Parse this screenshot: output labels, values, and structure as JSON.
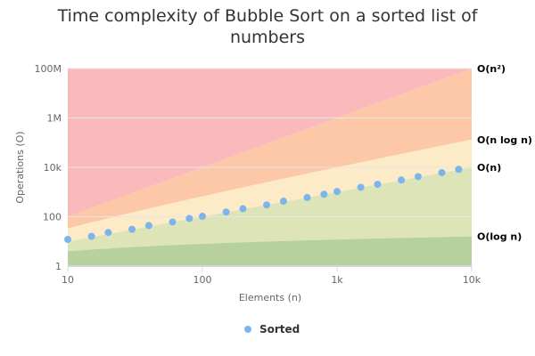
{
  "chart_data": {
    "type": "scatter",
    "title": "Time complexity of Bubble Sort on a sorted list of numbers",
    "xlabel": "Elements (n)",
    "ylabel": "Operations (O)",
    "x_scale": "log",
    "y_scale": "log",
    "xlim": [
      10,
      10000
    ],
    "ylim": [
      1,
      100000000
    ],
    "x_ticks": [
      {
        "value": 10,
        "label": "10"
      },
      {
        "value": 100,
        "label": "100"
      },
      {
        "value": 1000,
        "label": "1k"
      },
      {
        "value": 10000,
        "label": "10k"
      }
    ],
    "y_ticks": [
      {
        "value": 1,
        "label": "1"
      },
      {
        "value": 100,
        "label": "100"
      },
      {
        "value": 10000,
        "label": "10k"
      },
      {
        "value": 1000000,
        "label": "1M"
      },
      {
        "value": 100000000,
        "label": "100M"
      }
    ],
    "complexity_bands": [
      {
        "label": "O(n²)",
        "color": "#fab9bb"
      },
      {
        "label": "O(n log n)",
        "color": "#fcc8a8"
      },
      {
        "label": "O(n)",
        "color": "#fdebc8"
      },
      {
        "label": "O(log n)",
        "color": "#dde4b8"
      },
      {
        "label": "",
        "color": "#b7d19e"
      }
    ],
    "series": [
      {
        "name": "Sorted",
        "color": "#7cb5ec",
        "x": [
          10,
          15,
          20,
          30,
          40,
          60,
          80,
          100,
          150,
          200,
          300,
          400,
          600,
          800,
          1000,
          1500,
          2000,
          3000,
          4000,
          6000,
          8000
        ],
        "y": [
          12,
          16,
          23,
          31,
          44,
          61,
          85,
          104,
          155,
          210,
          300,
          425,
          600,
          810,
          1050,
          1550,
          2050,
          3050,
          4200,
          6100,
          8300
        ]
      }
    ],
    "legend": {
      "position": "bottom-center"
    },
    "grid": true
  }
}
